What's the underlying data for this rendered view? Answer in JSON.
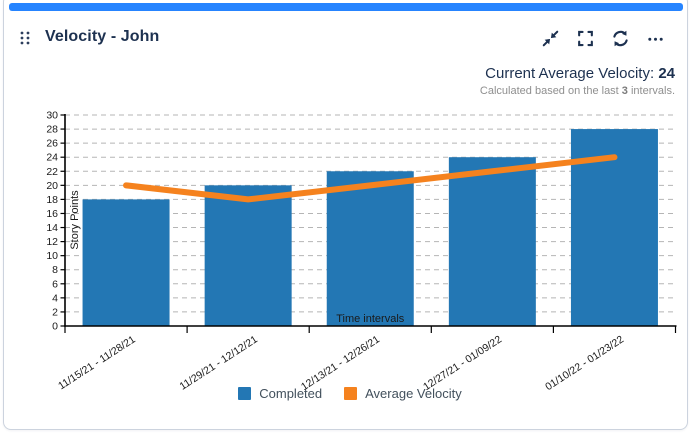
{
  "widget": {
    "title": "Velocity - John",
    "accent_color": "#2684ff",
    "icon_color": "#1d3150",
    "toolbar": [
      {
        "name": "collapse",
        "icon": "collapse-icon"
      },
      {
        "name": "fullscreen",
        "icon": "fullscreen-icon"
      },
      {
        "name": "refresh",
        "icon": "refresh-icon"
      },
      {
        "name": "more-options",
        "icon": "ellipsis-icon"
      }
    ]
  },
  "summary": {
    "label": "Current Average Velocity: ",
    "value": "24",
    "note_prefix": "Calculated based on the last ",
    "note_bold": "3",
    "note_suffix": " intervals."
  },
  "chart_data": {
    "type": "bar",
    "title": "",
    "categories": [
      "11/15/21 - 11/28/21",
      "11/29/21 - 12/12/21",
      "12/13/21 - 12/26/21",
      "12/27/21 - 01/09/22",
      "01/10/22 - 01/23/22"
    ],
    "series": [
      {
        "name": "Completed",
        "type": "bar",
        "color": "#2377b4",
        "values": [
          18,
          20,
          22,
          24,
          28
        ]
      },
      {
        "name": "Average Velocity",
        "type": "line",
        "color": "#f5821e",
        "values": [
          20,
          18,
          20,
          22,
          24
        ]
      }
    ],
    "xlabel": "Time intervals",
    "ylabel": "Story Points",
    "ylim": [
      0,
      30
    ],
    "ytick_step": 2,
    "grid": "horizontal-dashed",
    "legend_position": "bottom",
    "colors": {
      "grid": "#b5b5b5",
      "axis": "#000000",
      "tick_text": "#1a1a1a"
    }
  }
}
